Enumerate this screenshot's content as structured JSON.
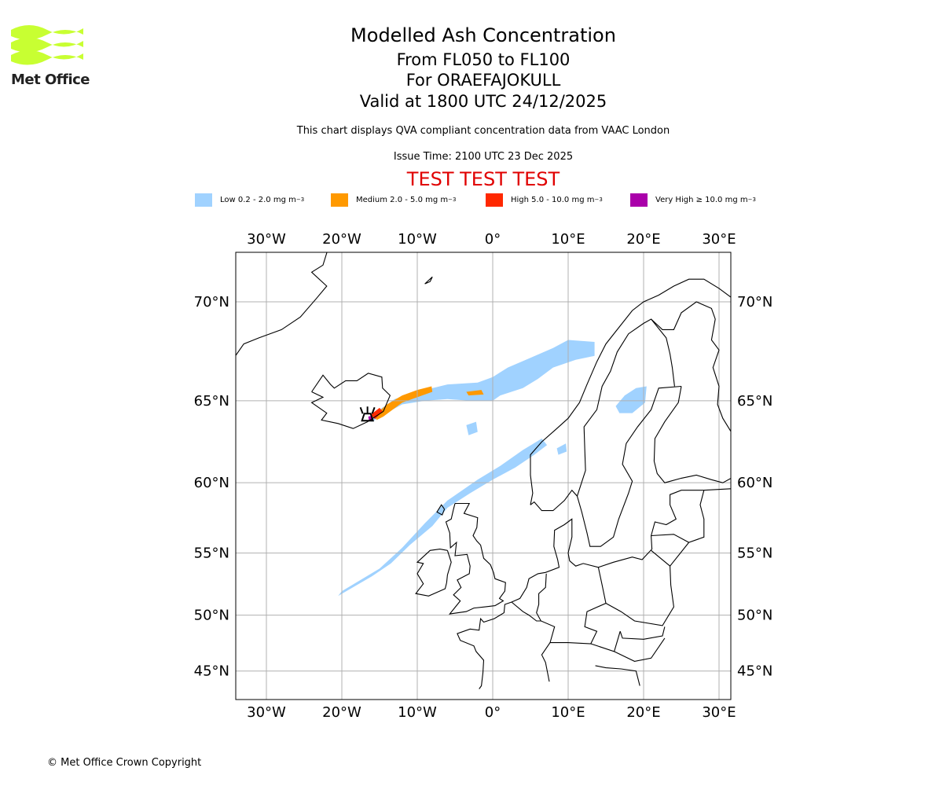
{
  "logo": {
    "text": "Met Office",
    "color": "#c8ff32"
  },
  "title": {
    "main": "Modelled Ash Concentration",
    "levels": "From FL050 to FL100",
    "volcano": "For ORAEFAJOKULL",
    "valid": "Valid at 1800 UTC 24/12/2025"
  },
  "description": "This chart displays QVA compliant concentration data from VAAC London",
  "issue_time": "Issue Time: 2100 UTC 23 Dec 2025",
  "test_banner": "TEST TEST TEST",
  "legend": [
    {
      "label": "Low 0.2 - 2.0 mg m",
      "unit_exp": "−3",
      "color": "#a0d2ff"
    },
    {
      "label": "Medium 2.0 - 5.0 mg m",
      "unit_exp": "−3",
      "color": "#ff9900"
    },
    {
      "label": "High 5.0 - 10.0 mg m",
      "unit_exp": "−3",
      "color": "#ff2800"
    },
    {
      "label": "Very High ≥ 10.0 mg m",
      "unit_exp": "−3",
      "color": "#aa00aa"
    }
  ],
  "chart_data": {
    "type": "map",
    "projection": "mercator",
    "lon_range": [
      -34,
      31.5
    ],
    "lat_range": [
      43.3,
      72.3
    ],
    "lon_ticks": [
      -30,
      -20,
      -10,
      0,
      10,
      20,
      30
    ],
    "lon_tick_labels": [
      "30°W",
      "20°W",
      "10°W",
      "0°",
      "10°E",
      "20°E",
      "30°E"
    ],
    "lat_ticks": [
      45,
      50,
      55,
      60,
      65,
      70
    ],
    "lat_tick_labels": [
      "45°N",
      "50°N",
      "55°N",
      "60°N",
      "65°N",
      "70°N"
    ],
    "grid": true,
    "volcano": {
      "name": "ORAEFAJOKULL",
      "lon": -16.6,
      "lat": 64.0
    },
    "ash_regions": [
      {
        "level": "Low",
        "polygon": [
          [
            -16.3,
            63.9
          ],
          [
            -15,
            64.5
          ],
          [
            -13,
            65.1
          ],
          [
            -10,
            65.5
          ],
          [
            -6,
            65.9
          ],
          [
            -2,
            66.0
          ],
          [
            0,
            66.3
          ],
          [
            2,
            66.8
          ],
          [
            5,
            67.3
          ],
          [
            8,
            67.8
          ],
          [
            10,
            68.2
          ],
          [
            13.5,
            68.1
          ],
          [
            13.5,
            67.4
          ],
          [
            11,
            67.2
          ],
          [
            8,
            66.8
          ],
          [
            6,
            66.2
          ],
          [
            4,
            65.7
          ],
          [
            1,
            65.3
          ],
          [
            0,
            65.0
          ],
          [
            -3,
            65.0
          ],
          [
            -6,
            65.1
          ],
          [
            -9,
            65.0
          ],
          [
            -12,
            64.8
          ],
          [
            -14.5,
            64.2
          ],
          [
            -16,
            63.8
          ]
        ]
      },
      {
        "level": "Low",
        "polygon": [
          [
            16.3,
            64.7
          ],
          [
            17.5,
            65.3
          ],
          [
            19,
            65.7
          ],
          [
            20.4,
            65.8
          ],
          [
            20.2,
            64.9
          ],
          [
            18.5,
            64.3
          ],
          [
            16.8,
            64.3
          ]
        ]
      },
      {
        "level": "Low",
        "polygon": [
          [
            7.2,
            62.4
          ],
          [
            5.5,
            61.8
          ],
          [
            3,
            61.0
          ],
          [
            0,
            60.2
          ],
          [
            -3,
            59.3
          ],
          [
            -6,
            58.3
          ],
          [
            -8,
            57.0
          ],
          [
            -11,
            55.6
          ],
          [
            -13.5,
            54.2
          ],
          [
            -16,
            53.2
          ],
          [
            -20.5,
            51.6
          ],
          [
            -20,
            52.0
          ],
          [
            -15,
            53.8
          ],
          [
            -12,
            55.4
          ],
          [
            -9,
            57.2
          ],
          [
            -6,
            58.8
          ],
          [
            -2,
            60.2
          ],
          [
            1,
            61.1
          ],
          [
            4,
            62.1
          ],
          [
            6.5,
            62.8
          ]
        ]
      },
      {
        "level": "Low",
        "polygon": [
          [
            -3.5,
            63.6
          ],
          [
            -2.2,
            63.8
          ],
          [
            -2.0,
            63.2
          ],
          [
            -3.2,
            63.0
          ]
        ]
      },
      {
        "level": "Low",
        "polygon": [
          [
            8.5,
            62.2
          ],
          [
            9.7,
            62.5
          ],
          [
            9.8,
            62.0
          ],
          [
            8.7,
            61.8
          ]
        ]
      },
      {
        "level": "Medium",
        "polygon": [
          [
            -15.6,
            64.2
          ],
          [
            -14,
            64.8
          ],
          [
            -12,
            65.3
          ],
          [
            -10,
            65.6
          ],
          [
            -8.1,
            65.8
          ],
          [
            -8.0,
            65.5
          ],
          [
            -10,
            65.2
          ],
          [
            -12,
            64.9
          ],
          [
            -14.5,
            64.1
          ],
          [
            -15.4,
            63.9
          ]
        ]
      },
      {
        "level": "Medium",
        "polygon": [
          [
            -3.5,
            65.5
          ],
          [
            -1.5,
            65.6
          ],
          [
            -1.2,
            65.35
          ],
          [
            -3.2,
            65.3
          ]
        ]
      },
      {
        "level": "High",
        "polygon": [
          [
            -16.2,
            64.2
          ],
          [
            -15.0,
            64.6
          ],
          [
            -14.6,
            64.4
          ],
          [
            -15.6,
            63.95
          ]
        ]
      },
      {
        "level": "Very High",
        "polygon": [
          [
            -16.5,
            64.1
          ],
          [
            -16.0,
            64.15
          ],
          [
            -15.9,
            63.9
          ],
          [
            -16.4,
            63.85
          ]
        ]
      }
    ]
  },
  "copyright": "© Met Office Crown Copyright"
}
